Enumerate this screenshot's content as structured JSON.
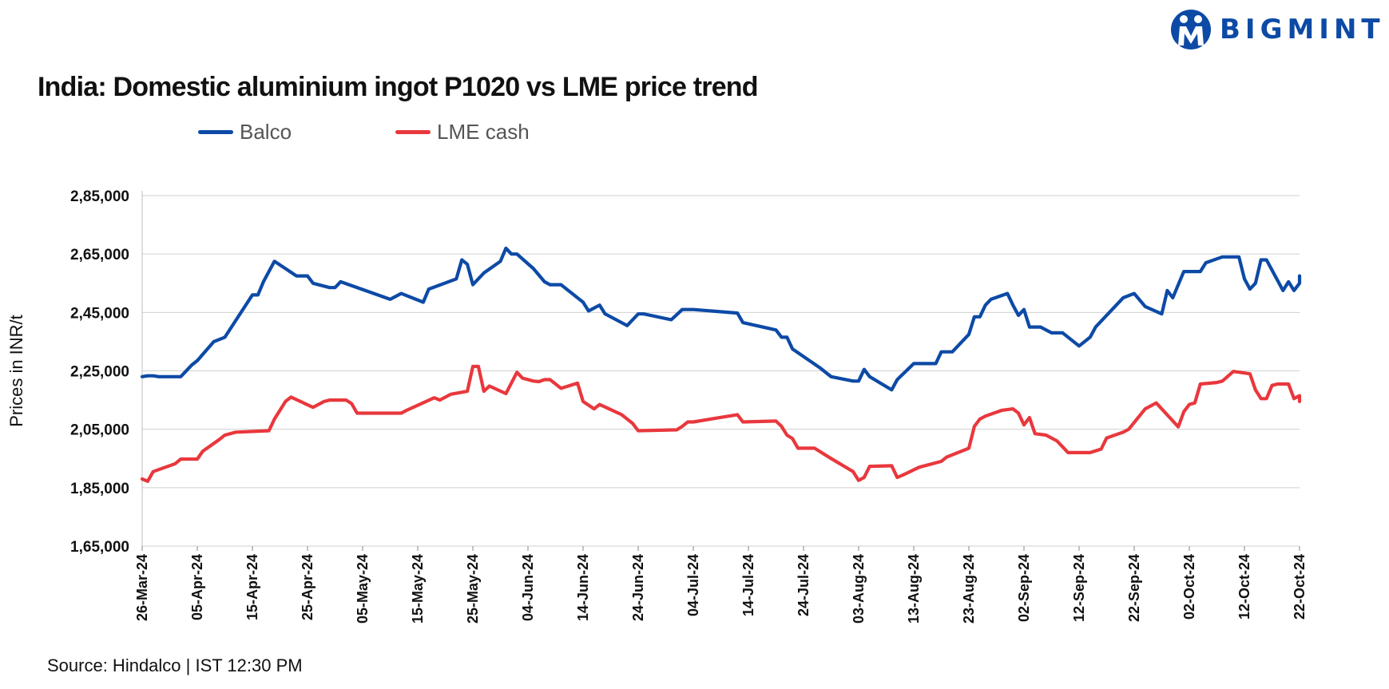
{
  "brand": {
    "name": "BIGMINT"
  },
  "colors": {
    "balco": "#0d4aa6",
    "lme": "#e8383d",
    "grid": "#d0d0d0",
    "brand": "#0d4aa6"
  },
  "source": "Source: Hindalco | IST 12:30 PM",
  "chart_data": {
    "type": "line",
    "title": "India: Domestic aluminium ingot P1020 vs LME price trend",
    "ylabel": "Prices in INR/t",
    "xlabel": "",
    "ylim": [
      165000,
      285000
    ],
    "yticks": [
      165000,
      185000,
      205000,
      225000,
      245000,
      265000,
      285000
    ],
    "ytick_labels": [
      "1,65,000",
      "1,85,000",
      "2,05,000",
      "2,25,000",
      "2,45,000",
      "2,65,000",
      "2,85,000"
    ],
    "xlim": [
      "2024-03-26",
      "2024-10-22"
    ],
    "xtick_labels": [
      "26-Mar-24",
      "05-Apr-24",
      "15-Apr-24",
      "25-Apr-24",
      "05-May-24",
      "15-May-24",
      "25-May-24",
      "04-Jun-24",
      "14-Jun-24",
      "24-Jun-24",
      "04-Jul-24",
      "14-Jul-24",
      "24-Jul-24",
      "03-Aug-24",
      "13-Aug-24",
      "23-Aug-24",
      "02-Sep-24",
      "12-Sep-24",
      "22-Sep-24",
      "02-Oct-24",
      "12-Oct-24",
      "22-Oct-24"
    ],
    "grid": true,
    "legend_position": "top-left",
    "series": [
      {
        "name": "Balco",
        "points": [
          [
            "2024-03-26",
            223000
          ],
          [
            "2024-03-27",
            223300
          ],
          [
            "2024-03-28",
            223300
          ],
          [
            "2024-03-29",
            223000
          ],
          [
            "2024-04-01",
            223000
          ],
          [
            "2024-04-02",
            223000
          ],
          [
            "2024-04-03",
            225000
          ],
          [
            "2024-04-04",
            227000
          ],
          [
            "2024-04-05",
            228500
          ],
          [
            "2024-04-08",
            235000
          ],
          [
            "2024-04-10",
            236500
          ],
          [
            "2024-04-15",
            251000
          ],
          [
            "2024-04-16",
            251000
          ],
          [
            "2024-04-17",
            255500
          ],
          [
            "2024-04-19",
            262500
          ],
          [
            "2024-04-23",
            257500
          ],
          [
            "2024-04-25",
            257500
          ],
          [
            "2024-04-26",
            255000
          ],
          [
            "2024-04-29",
            253500
          ],
          [
            "2024-04-30",
            253500
          ],
          [
            "2024-05-01",
            255500
          ],
          [
            "2024-05-10",
            249500
          ],
          [
            "2024-05-12",
            251500
          ],
          [
            "2024-05-16",
            248500
          ],
          [
            "2024-05-17",
            253000
          ],
          [
            "2024-05-22",
            256500
          ],
          [
            "2024-05-23",
            263000
          ],
          [
            "2024-05-24",
            261500
          ],
          [
            "2024-05-25",
            254500
          ],
          [
            "2024-05-27",
            258500
          ],
          [
            "2024-05-30",
            262500
          ],
          [
            "2024-05-31",
            267000
          ],
          [
            "2024-06-01",
            265000
          ],
          [
            "2024-06-02",
            265000
          ],
          [
            "2024-06-05",
            260000
          ],
          [
            "2024-06-07",
            255500
          ],
          [
            "2024-06-08",
            254500
          ],
          [
            "2024-06-10",
            254500
          ],
          [
            "2024-06-14",
            248500
          ],
          [
            "2024-06-15",
            245500
          ],
          [
            "2024-06-17",
            247500
          ],
          [
            "2024-06-18",
            244500
          ],
          [
            "2024-06-22",
            240500
          ],
          [
            "2024-06-24",
            244500
          ],
          [
            "2024-06-25",
            244500
          ],
          [
            "2024-06-30",
            242500
          ],
          [
            "2024-07-02",
            246000
          ],
          [
            "2024-07-04",
            246000
          ],
          [
            "2024-07-12",
            244800
          ],
          [
            "2024-07-13",
            241500
          ],
          [
            "2024-07-19",
            239000
          ],
          [
            "2024-07-20",
            236500
          ],
          [
            "2024-07-21",
            236500
          ],
          [
            "2024-07-22",
            232500
          ],
          [
            "2024-07-27",
            226000
          ],
          [
            "2024-07-29",
            223000
          ],
          [
            "2024-08-02",
            221500
          ],
          [
            "2024-08-03",
            221500
          ],
          [
            "2024-08-04",
            225500
          ],
          [
            "2024-08-05",
            223000
          ],
          [
            "2024-08-09",
            218500
          ],
          [
            "2024-08-10",
            222000
          ],
          [
            "2024-08-13",
            227500
          ],
          [
            "2024-08-17",
            227500
          ],
          [
            "2024-08-18",
            231500
          ],
          [
            "2024-08-20",
            231500
          ],
          [
            "2024-08-23",
            237500
          ],
          [
            "2024-08-24",
            243500
          ],
          [
            "2024-08-25",
            243500
          ],
          [
            "2024-08-26",
            247500
          ],
          [
            "2024-08-27",
            249500
          ],
          [
            "2024-08-30",
            251500
          ],
          [
            "2024-08-31",
            247500
          ],
          [
            "2024-09-01",
            244000
          ],
          [
            "2024-09-02",
            246000
          ],
          [
            "2024-09-03",
            240000
          ],
          [
            "2024-09-05",
            240000
          ],
          [
            "2024-09-07",
            238000
          ],
          [
            "2024-09-09",
            238000
          ],
          [
            "2024-09-12",
            233500
          ],
          [
            "2024-09-14",
            236500
          ],
          [
            "2024-09-15",
            240000
          ],
          [
            "2024-09-20",
            250000
          ],
          [
            "2024-09-22",
            251500
          ],
          [
            "2024-09-24",
            247000
          ],
          [
            "2024-09-27",
            244500
          ],
          [
            "2024-09-28",
            252500
          ],
          [
            "2024-09-29",
            250000
          ],
          [
            "2024-10-01",
            259000
          ],
          [
            "2024-10-04",
            259000
          ],
          [
            "2024-10-05",
            262000
          ],
          [
            "2024-10-08",
            264000
          ],
          [
            "2024-10-11",
            264000
          ],
          [
            "2024-10-12",
            256500
          ],
          [
            "2024-10-13",
            253000
          ],
          [
            "2024-10-14",
            255000
          ],
          [
            "2024-10-15",
            263000
          ],
          [
            "2024-10-16",
            263000
          ],
          [
            "2024-10-19",
            252500
          ],
          [
            "2024-10-20",
            255500
          ],
          [
            "2024-10-21",
            252500
          ],
          [
            "2024-10-22",
            255000
          ],
          [
            "2024-10-25",
            257500
          ]
        ]
      },
      {
        "name": "LME cash",
        "points": [
          [
            "2024-03-26",
            188000
          ],
          [
            "2024-03-27",
            187200
          ],
          [
            "2024-03-28",
            190500
          ],
          [
            "2024-03-29",
            191200
          ],
          [
            "2024-04-01",
            193200
          ],
          [
            "2024-04-02",
            194800
          ],
          [
            "2024-04-05",
            194800
          ],
          [
            "2024-04-06",
            197500
          ],
          [
            "2024-04-09",
            201500
          ],
          [
            "2024-04-10",
            203000
          ],
          [
            "2024-04-12",
            204000
          ],
          [
            "2024-04-18",
            204500
          ],
          [
            "2024-04-19",
            208500
          ],
          [
            "2024-04-21",
            214500
          ],
          [
            "2024-04-22",
            216000
          ],
          [
            "2024-04-26",
            212500
          ],
          [
            "2024-04-28",
            214500
          ],
          [
            "2024-04-29",
            215000
          ],
          [
            "2024-05-02",
            215000
          ],
          [
            "2024-05-03",
            213800
          ],
          [
            "2024-05-04",
            210500
          ],
          [
            "2024-05-12",
            210500
          ],
          [
            "2024-05-13",
            211500
          ],
          [
            "2024-05-18",
            215800
          ],
          [
            "2024-05-19",
            215000
          ],
          [
            "2024-05-21",
            217000
          ],
          [
            "2024-05-24",
            218000
          ],
          [
            "2024-05-25",
            226500
          ],
          [
            "2024-05-26",
            226500
          ],
          [
            "2024-05-27",
            218000
          ],
          [
            "2024-05-28",
            219800
          ],
          [
            "2024-05-31",
            217200
          ],
          [
            "2024-06-02",
            224500
          ],
          [
            "2024-06-03",
            222500
          ],
          [
            "2024-06-05",
            221500
          ],
          [
            "2024-06-06",
            221300
          ],
          [
            "2024-06-07",
            222000
          ],
          [
            "2024-06-08",
            222000
          ],
          [
            "2024-06-10",
            219000
          ],
          [
            "2024-06-13",
            220800
          ],
          [
            "2024-06-14",
            214500
          ],
          [
            "2024-06-16",
            212000
          ],
          [
            "2024-06-17",
            213500
          ],
          [
            "2024-06-21",
            210000
          ],
          [
            "2024-06-22",
            208500
          ],
          [
            "2024-06-23",
            207000
          ],
          [
            "2024-06-24",
            204500
          ],
          [
            "2024-07-01",
            204800
          ],
          [
            "2024-07-02",
            206000
          ],
          [
            "2024-07-03",
            207500
          ],
          [
            "2024-07-04",
            207500
          ],
          [
            "2024-07-12",
            210000
          ],
          [
            "2024-07-13",
            207500
          ],
          [
            "2024-07-19",
            207800
          ],
          [
            "2024-07-20",
            206000
          ],
          [
            "2024-07-21",
            203000
          ],
          [
            "2024-07-22",
            201800
          ],
          [
            "2024-07-23",
            198500
          ],
          [
            "2024-07-26",
            198500
          ],
          [
            "2024-07-29",
            195000
          ],
          [
            "2024-08-02",
            190500
          ],
          [
            "2024-08-03",
            187500
          ],
          [
            "2024-08-04",
            188500
          ],
          [
            "2024-08-05",
            192300
          ],
          [
            "2024-08-09",
            192500
          ],
          [
            "2024-08-10",
            188500
          ],
          [
            "2024-08-11",
            189300
          ],
          [
            "2024-08-14",
            192000
          ],
          [
            "2024-08-18",
            194000
          ],
          [
            "2024-08-19",
            195500
          ],
          [
            "2024-08-23",
            198500
          ],
          [
            "2024-08-24",
            206000
          ],
          [
            "2024-08-25",
            208500
          ],
          [
            "2024-08-26",
            209500
          ],
          [
            "2024-08-29",
            211500
          ],
          [
            "2024-08-31",
            212000
          ],
          [
            "2024-09-01",
            210500
          ],
          [
            "2024-09-02",
            206500
          ],
          [
            "2024-09-03",
            209000
          ],
          [
            "2024-09-04",
            203500
          ],
          [
            "2024-09-06",
            203000
          ],
          [
            "2024-09-08",
            201000
          ],
          [
            "2024-09-10",
            197000
          ],
          [
            "2024-09-14",
            197000
          ],
          [
            "2024-09-16",
            198200
          ],
          [
            "2024-09-17",
            202000
          ],
          [
            "2024-09-20",
            204000
          ],
          [
            "2024-09-21",
            205000
          ],
          [
            "2024-09-24",
            212000
          ],
          [
            "2024-09-26",
            214000
          ],
          [
            "2024-09-30",
            205800
          ],
          [
            "2024-10-01",
            211000
          ],
          [
            "2024-10-02",
            213500
          ],
          [
            "2024-10-03",
            214000
          ],
          [
            "2024-10-04",
            220500
          ],
          [
            "2024-10-07",
            221000
          ],
          [
            "2024-10-08",
            221500
          ],
          [
            "2024-10-10",
            224800
          ],
          [
            "2024-10-13",
            224000
          ],
          [
            "2024-10-14",
            218500
          ],
          [
            "2024-10-15",
            215500
          ],
          [
            "2024-10-16",
            215500
          ],
          [
            "2024-10-17",
            220000
          ],
          [
            "2024-10-18",
            220500
          ],
          [
            "2024-10-20",
            220500
          ],
          [
            "2024-10-21",
            215500
          ],
          [
            "2024-10-22",
            216500
          ],
          [
            "2024-10-23",
            214500
          ],
          [
            "2024-10-24",
            215000
          ],
          [
            "2024-10-29",
            214800
          ]
        ]
      }
    ]
  }
}
